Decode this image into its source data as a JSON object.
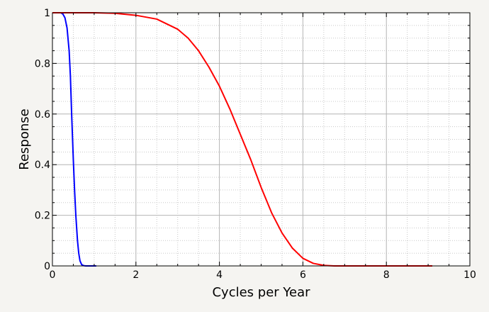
{
  "chart_data": {
    "type": "line",
    "title": "",
    "xlabel": "Cycles per Year",
    "ylabel": "Response",
    "xlim": [
      0,
      10
    ],
    "ylim": [
      0,
      1
    ],
    "xticks": [
      0,
      2,
      4,
      6,
      8,
      10
    ],
    "yticks": [
      0,
      0.2,
      0.4,
      0.6,
      0.8,
      1
    ],
    "xtick_labels": [
      "0",
      "2",
      "4",
      "6",
      "8",
      "10"
    ],
    "ytick_labels": [
      "0",
      "0.2",
      "0.4",
      "0.6",
      "0.8",
      "1"
    ],
    "grid": true,
    "legend": "none",
    "series": [
      {
        "color": "#0000ff",
        "x": [
          0,
          0.1,
          0.2,
          0.25,
          0.3,
          0.35,
          0.4,
          0.43,
          0.46,
          0.5,
          0.53,
          0.56,
          0.6,
          0.63,
          0.66,
          0.7,
          0.75,
          0.8,
          0.9,
          1.05
        ],
        "y": [
          1,
          1,
          1,
          0.995,
          0.98,
          0.94,
          0.85,
          0.75,
          0.6,
          0.42,
          0.3,
          0.2,
          0.1,
          0.05,
          0.02,
          0.005,
          0.001,
          0,
          0,
          0
        ]
      },
      {
        "color": "#ff0000",
        "x": [
          0,
          1,
          1.5,
          2,
          2.5,
          3,
          3.25,
          3.5,
          3.75,
          4,
          4.25,
          4.5,
          4.75,
          5,
          5.25,
          5.5,
          5.75,
          6,
          6.25,
          6.5,
          6.75,
          7,
          8,
          9.1
        ],
        "y": [
          1,
          1,
          0.998,
          0.99,
          0.975,
          0.935,
          0.9,
          0.85,
          0.785,
          0.71,
          0.62,
          0.52,
          0.42,
          0.31,
          0.21,
          0.13,
          0.07,
          0.03,
          0.01,
          0.002,
          0,
          0,
          0,
          0
        ]
      }
    ]
  }
}
